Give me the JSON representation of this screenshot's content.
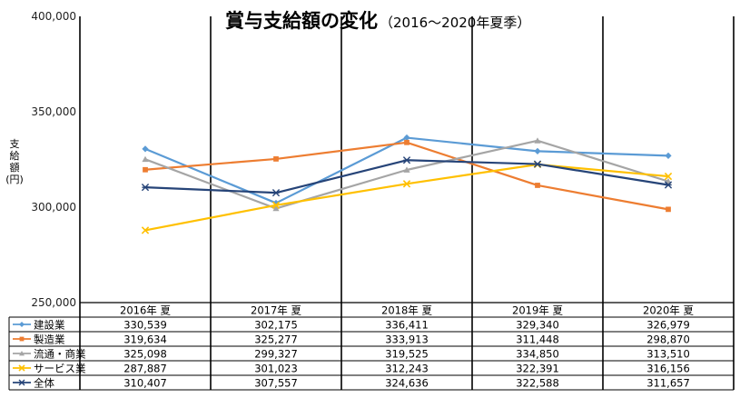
{
  "chart_data": {
    "type": "line",
    "title": "賞与支給額の変化",
    "subtitle": "（2016～2020年夏季）",
    "ylabel_lines": [
      "支",
      "給",
      "額",
      "(円)"
    ],
    "categories": [
      "2016年 夏",
      "2017年 夏",
      "2018年 夏",
      "2019年 夏",
      "2020年 夏"
    ],
    "ylim": [
      250000,
      400000
    ],
    "yticks": [
      250000,
      300000,
      350000,
      400000
    ],
    "ytick_labels": [
      "250,000",
      "300,000",
      "350,000",
      "400,000"
    ],
    "grid": "vertical",
    "legend": "data-table",
    "series": [
      {
        "name": "建設業",
        "color": "#5B9BD5",
        "marker": "diamond",
        "values": [
          330539,
          302175,
          336411,
          329340,
          326979
        ],
        "labels": [
          "330,539",
          "302,175",
          "336,411",
          "329,340",
          "326,979"
        ]
      },
      {
        "name": "製造業",
        "color": "#ED7D31",
        "marker": "square",
        "values": [
          319634,
          325277,
          333913,
          311448,
          298870
        ],
        "labels": [
          "319,634",
          "325,277",
          "333,913",
          "311,448",
          "298,870"
        ]
      },
      {
        "name": "流通・商業",
        "color": "#A5A5A5",
        "marker": "triangle",
        "values": [
          325098,
          299327,
          319525,
          334850,
          313510
        ],
        "labels": [
          "325,098",
          "299,327",
          "319,525",
          "334,850",
          "313,510"
        ]
      },
      {
        "name": "サービス業",
        "color": "#FFC000",
        "marker": "x",
        "values": [
          287887,
          301023,
          312243,
          322391,
          316156
        ],
        "labels": [
          "287,887",
          "301,023",
          "312,243",
          "322,391",
          "316,156"
        ]
      },
      {
        "name": "全体",
        "color": "#264478",
        "marker": "asterisk",
        "values": [
          310407,
          307557,
          324636,
          322588,
          311657
        ],
        "labels": [
          "310,407",
          "307,557",
          "324,636",
          "322,588",
          "311,657"
        ]
      }
    ]
  }
}
